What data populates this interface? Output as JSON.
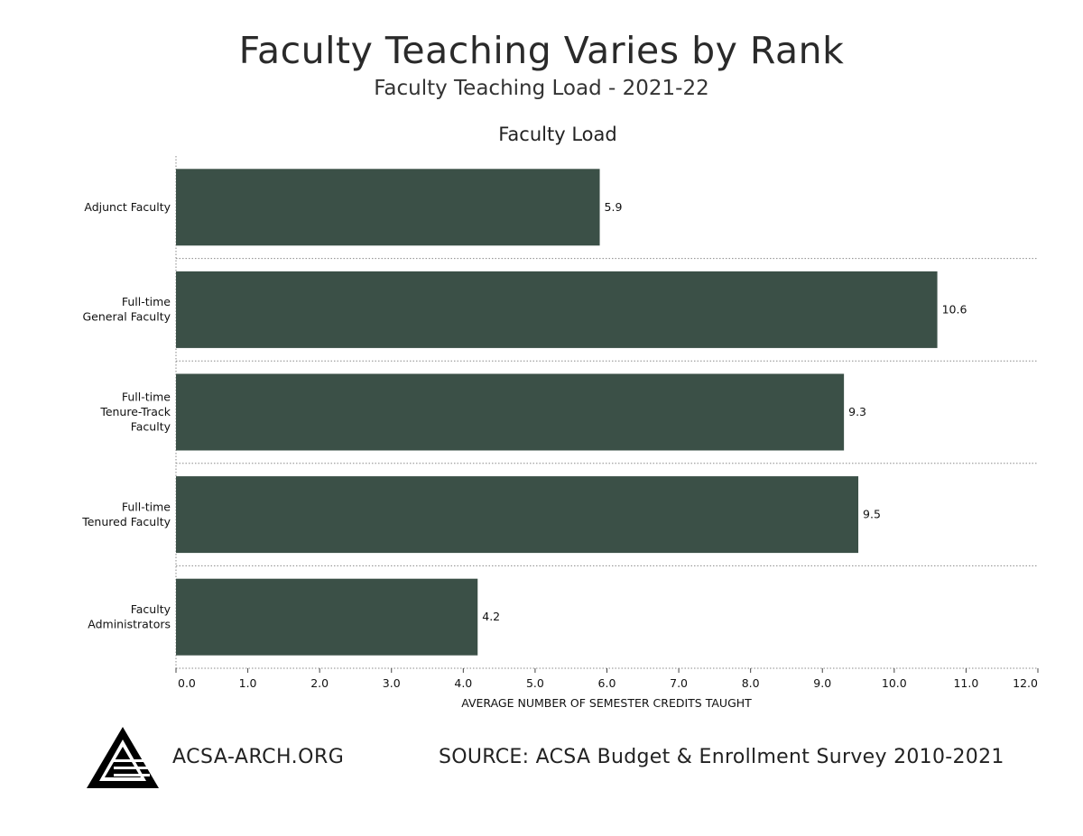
{
  "header": {
    "title": "Faculty Teaching Varies by Rank",
    "subtitle": "Faculty Teaching Load - 2021-22"
  },
  "footer": {
    "site": "ACSA-ARCH.ORG",
    "source": "SOURCE: ACSA Budget & Enrollment Survey 2010-2021",
    "logo_icon": "acsa-triangle-logo-icon"
  },
  "colors": {
    "bar": "#3b5047",
    "grid": "#8a8a8a"
  },
  "chart_data": {
    "type": "bar",
    "orientation": "horizontal",
    "title": "Faculty Load",
    "xlabel": "AVERAGE NUMBER OF SEMESTER CREDITS TAUGHT",
    "ylabel": "",
    "categories": [
      [
        "Adjunct Faculty"
      ],
      [
        "Full-time",
        "General Faculty"
      ],
      [
        "Full-time",
        "Tenure-Track",
        "Faculty"
      ],
      [
        "Full-time",
        "Tenured Faculty"
      ],
      [
        "Faculty",
        "Administrators"
      ]
    ],
    "values": [
      5.9,
      10.6,
      9.3,
      9.5,
      4.2
    ],
    "data_labels": [
      "5.9",
      "10.6",
      "9.3",
      "9.5",
      "4.2"
    ],
    "xlim": [
      0,
      12
    ],
    "xticks": [
      "0.0",
      "1.0",
      "2.0",
      "3.0",
      "4.0",
      "5.0",
      "6.0",
      "7.0",
      "8.0",
      "9.0",
      "10.0",
      "11.0",
      "12.0"
    ],
    "grid": "dotted separators between categories",
    "legend": "none"
  }
}
